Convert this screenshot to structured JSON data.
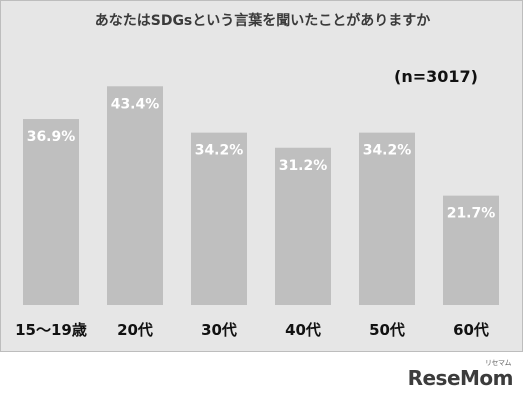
{
  "chart_data": {
    "type": "bar",
    "title": "あなたはSDGsという言葉を聞いたことがありますか",
    "note": "(n=3017)",
    "categories": [
      "15～19歳",
      "20代",
      "30代",
      "40代",
      "50代",
      "60代"
    ],
    "values": [
      36.9,
      43.4,
      34.2,
      31.2,
      34.2,
      21.7
    ],
    "value_labels": [
      "36.9%",
      "43.4%",
      "34.2%",
      "31.2%",
      "34.2%",
      "21.7%"
    ],
    "ylim": [
      0,
      50
    ],
    "grid": false,
    "colors": {
      "bar": "#bfbfbf",
      "panel": "#e6e6e6",
      "value_label": "#ffffff",
      "category_label": "#111111"
    }
  },
  "brand": {
    "name": "ReseMom",
    "tag": "リセマム"
  }
}
